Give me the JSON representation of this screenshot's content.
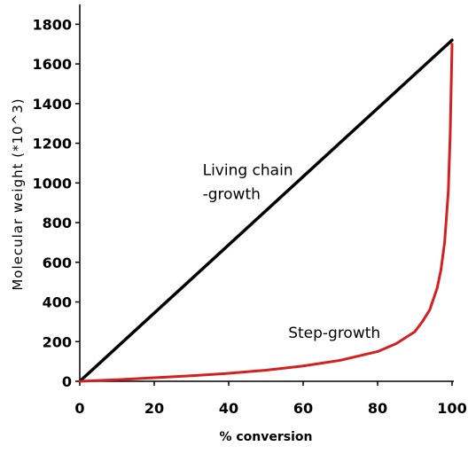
{
  "chart_data": {
    "type": "line",
    "title": "",
    "xlabel": "% conversion",
    "ylabel": "Molecular weight (*10^3)",
    "xlim": [
      0,
      100
    ],
    "ylim": [
      0,
      1900
    ],
    "xticks": [
      0,
      20,
      40,
      60,
      80,
      100
    ],
    "yticks": [
      0,
      200,
      400,
      600,
      800,
      1000,
      1200,
      1400,
      1600,
      1800
    ],
    "grid": false,
    "legend": "none",
    "series": [
      {
        "color": "#000000",
        "x": [
          0,
          100
        ],
        "y": [
          0,
          1720
        ]
      },
      {
        "color": "#d42020",
        "x": [
          0,
          10,
          20,
          30,
          40,
          50,
          60,
          70,
          80,
          85,
          90,
          92,
          94,
          96,
          97,
          98,
          99,
          99.5,
          100
        ],
        "y": [
          0,
          8,
          18,
          28,
          40,
          56,
          77,
          106,
          150,
          190,
          250,
          300,
          360,
          470,
          560,
          700,
          960,
          1250,
          1700
        ]
      }
    ],
    "annotations": [
      {
        "line1": "Living chain",
        "line2": "-growth",
        "x": 33,
        "y": 1040
      },
      {
        "line1": "Step-growth",
        "x": 56,
        "y": 220
      }
    ]
  }
}
